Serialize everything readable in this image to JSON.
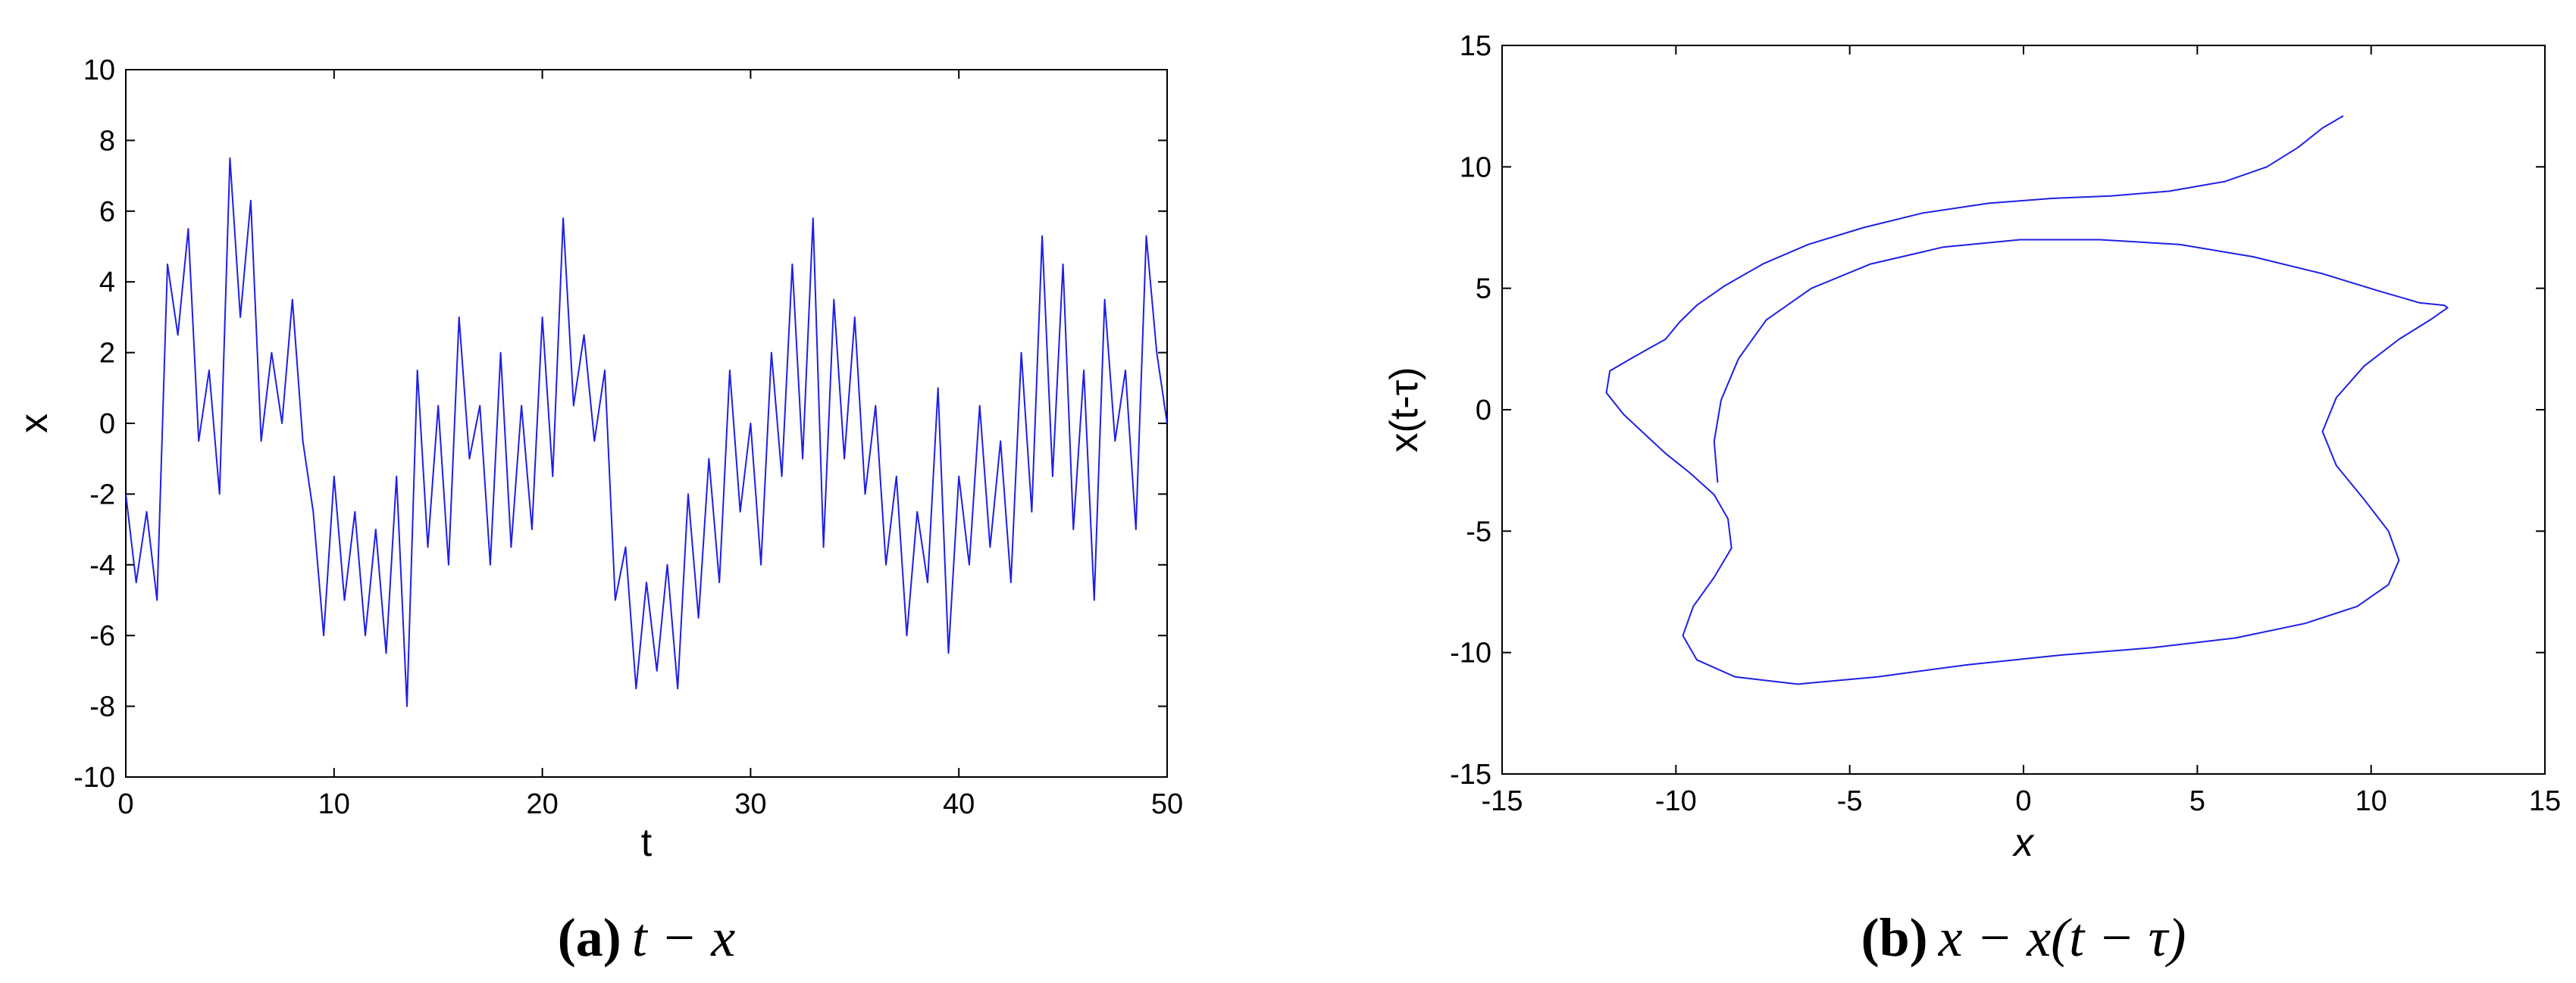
{
  "colors": {
    "series": "#1f1fe6",
    "axes": "#000000",
    "background": "#ffffff"
  },
  "chart_data": [
    {
      "type": "line",
      "xlabel": "t",
      "ylabel": "x",
      "xlim": [
        0,
        50
      ],
      "ylim": [
        -10,
        10
      ],
      "xticks": [
        0,
        10,
        20,
        30,
        40,
        50
      ],
      "yticks": [
        -10,
        -8,
        -6,
        -4,
        -2,
        0,
        2,
        4,
        6,
        8,
        10
      ],
      "grid": false,
      "caption_label": "(a)",
      "caption_text": "t − x",
      "series": [
        {
          "x": [
            0.0,
            0.5,
            1.0,
            1.5,
            2.0,
            2.5,
            3.0,
            3.5,
            4.0,
            4.5,
            5.0,
            5.5,
            6.0,
            6.5,
            7.0,
            7.5,
            8.0,
            8.5,
            9.0,
            9.5,
            10.0,
            10.5,
            11.0,
            11.5,
            12.0,
            12.5,
            13.0,
            13.5,
            14.0,
            14.5,
            15.0,
            15.5,
            16.0,
            16.5,
            17.0,
            17.5,
            18.0,
            18.5,
            19.0,
            19.5,
            20.0,
            20.5,
            21.0,
            21.5,
            22.0,
            22.5,
            23.0,
            23.5,
            24.0,
            24.5,
            25.0,
            25.5,
            26.0,
            26.5,
            27.0,
            27.5,
            28.0,
            28.5,
            29.0,
            29.5,
            30.0,
            30.5,
            31.0,
            31.5,
            32.0,
            32.5,
            33.0,
            33.5,
            34.0,
            34.5,
            35.0,
            35.5,
            36.0,
            36.5,
            37.0,
            37.5,
            38.0,
            38.5,
            39.0,
            39.5,
            40.0,
            40.5,
            41.0,
            41.5,
            42.0,
            42.5,
            43.0,
            43.5,
            44.0,
            44.5,
            45.0,
            45.5,
            46.0,
            46.5,
            47.0,
            47.5,
            48.0,
            48.5,
            49.0,
            49.5,
            50.0
          ],
          "y": [
            -2.0,
            -4.5,
            -2.5,
            -5.0,
            4.5,
            2.5,
            5.5,
            -0.5,
            1.5,
            -2.0,
            7.5,
            3.0,
            6.3,
            -0.5,
            2.0,
            0.0,
            3.5,
            -0.5,
            -2.5,
            -6.0,
            -1.5,
            -5.0,
            -2.5,
            -6.0,
            -3.0,
            -6.5,
            -1.5,
            -8.0,
            1.5,
            -3.5,
            0.5,
            -4.0,
            3.0,
            -1.0,
            0.5,
            -4.0,
            2.0,
            -3.5,
            0.5,
            -3.0,
            3.0,
            -1.5,
            5.8,
            0.5,
            2.5,
            -0.5,
            1.5,
            -5.0,
            -3.5,
            -7.5,
            -4.5,
            -7.0,
            -4.0,
            -7.5,
            -2.0,
            -5.5,
            -1.0,
            -4.5,
            1.5,
            -2.5,
            0.0,
            -4.0,
            2.0,
            -1.5,
            4.5,
            -1.0,
            5.8,
            -3.5,
            3.5,
            -1.0,
            3.0,
            -2.0,
            0.5,
            -4.0,
            -1.5,
            -6.0,
            -2.5,
            -4.5,
            1.0,
            -6.5,
            -1.5,
            -4.0,
            0.5,
            -3.5,
            -0.5,
            -4.5,
            2.0,
            -2.5,
            5.3,
            -1.5,
            4.5,
            -3.0,
            1.5,
            -5.0,
            3.5,
            -0.5,
            1.5,
            -3.0,
            5.3,
            2.0,
            0.0
          ]
        }
      ]
    },
    {
      "type": "line",
      "xlabel": "x",
      "ylabel": "x(t-τ)",
      "xlim": [
        -15,
        15
      ],
      "ylim": [
        -15,
        15
      ],
      "xticks": [
        -15,
        -10,
        -5,
        0,
        5,
        10,
        15
      ],
      "yticks": [
        -15,
        -10,
        -5,
        0,
        5,
        10,
        15
      ],
      "grid": false,
      "caption_label": "(b)",
      "caption_text": "x − x(t − τ)",
      "series": [
        {
          "x": [
            9.2,
            8.6,
            7.9,
            7.0,
            5.8,
            4.2,
            2.5,
            0.8,
            -1.0,
            -2.9,
            -4.6,
            -6.2,
            -7.5,
            -8.6,
            -9.4,
            -9.9,
            -10.3,
            -10.8,
            -11.3,
            -11.9,
            -12.0,
            -11.5,
            -10.9,
            -10.3,
            -9.6,
            -8.9,
            -8.5,
            -8.4,
            -8.9,
            -9.5,
            -9.8,
            -9.4,
            -8.3,
            -6.5,
            -4.2,
            -1.6,
            1.1,
            3.7,
            6.1,
            8.1,
            9.6,
            10.5,
            10.8,
            10.5,
            9.8,
            9.0,
            8.6,
            9.0,
            9.8,
            10.8,
            11.7,
            12.2,
            12.1,
            11.4,
            10.2,
            8.6,
            6.6,
            4.5,
            2.2,
            -0.1,
            -2.3,
            -4.4,
            -6.1,
            -7.4,
            -8.2,
            -8.7,
            -8.9,
            -8.8
          ],
          "y": [
            12.1,
            11.6,
            10.8,
            10.0,
            9.4,
            9.0,
            8.8,
            8.7,
            8.5,
            8.1,
            7.5,
            6.8,
            6.0,
            5.1,
            4.3,
            3.6,
            2.9,
            2.5,
            2.1,
            1.6,
            0.7,
            -0.2,
            -1.0,
            -1.8,
            -2.6,
            -3.5,
            -4.5,
            -5.7,
            -6.9,
            -8.1,
            -9.3,
            -10.3,
            -11.0,
            -11.3,
            -11.0,
            -10.5,
            -10.1,
            -9.8,
            -9.4,
            -8.8,
            -8.1,
            -7.2,
            -6.2,
            -5.0,
            -3.7,
            -2.3,
            -0.9,
            0.5,
            1.8,
            2.9,
            3.7,
            4.2,
            4.3,
            4.4,
            4.9,
            5.6,
            6.3,
            6.8,
            7.0,
            7.0,
            6.7,
            6.0,
            5.0,
            3.7,
            2.1,
            0.4,
            -1.3,
            -3.0
          ]
        }
      ]
    }
  ]
}
